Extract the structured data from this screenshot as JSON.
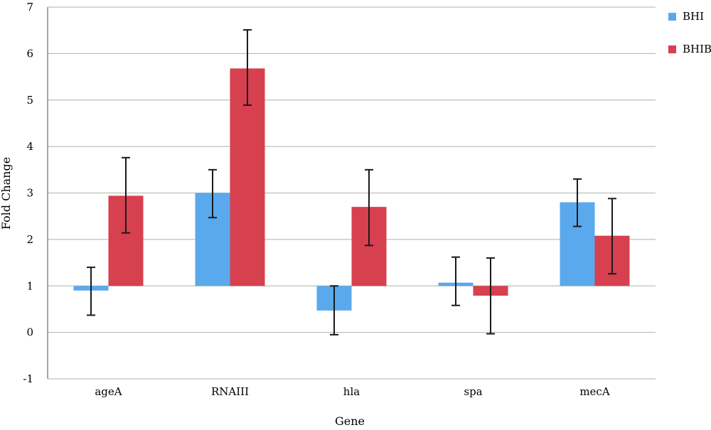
{
  "chart_data": {
    "type": "bar",
    "title": "",
    "xlabel": "Gene",
    "ylabel": "Fold Change",
    "categories": [
      "ageA",
      "RNAIII",
      "hla",
      "spa",
      "mecA"
    ],
    "baseline": 1,
    "ylim": [
      -1,
      7
    ],
    "yticks": [
      "-1",
      "0",
      "1",
      "2",
      "3",
      "4",
      "5",
      "6",
      "7"
    ],
    "grid": true,
    "legend_position": "top-right",
    "series": [
      {
        "name": "BHI",
        "color": "#5aa9ec",
        "values": [
          0.9,
          3.0,
          0.47,
          1.07,
          2.8
        ],
        "err_low": [
          0.37,
          2.47,
          -0.05,
          0.58,
          2.28
        ],
        "err_high": [
          1.4,
          3.5,
          1.0,
          1.62,
          3.3
        ]
      },
      {
        "name": "BHIB",
        "color": "#d6404f",
        "values": [
          2.94,
          5.68,
          2.7,
          0.79,
          2.08
        ],
        "err_low": [
          2.14,
          4.89,
          1.87,
          -0.03,
          1.26
        ],
        "err_high": [
          3.76,
          6.51,
          3.5,
          1.6,
          2.88
        ]
      }
    ]
  }
}
